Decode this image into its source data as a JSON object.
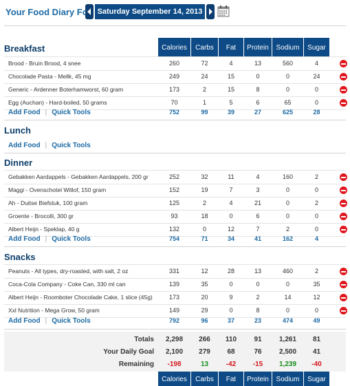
{
  "header": {
    "title": "Your Food Diary For:",
    "date": "Saturday September 14, 2013"
  },
  "columns": [
    "Calories",
    "Carbs",
    "Fat",
    "Protein",
    "Sodium",
    "Sugar"
  ],
  "meals": [
    {
      "name": "Breakfast",
      "entries": [
        {
          "name": "Brood - Bruin Brood, 4 snee",
          "values": [
            "260",
            "72",
            "4",
            "13",
            "560",
            "4"
          ]
        },
        {
          "name": "Chocolade Pasta - Mellk, 45 mg",
          "values": [
            "249",
            "24",
            "15",
            "0",
            "0",
            "24"
          ]
        },
        {
          "name": "Generic - Ardenner Boterhamworst, 60 gram",
          "values": [
            "173",
            "2",
            "15",
            "8",
            "0",
            "0"
          ]
        },
        {
          "name": "Egg (Auchan) - Hard-boiled, 50 grams",
          "values": [
            "70",
            "1",
            "5",
            "6",
            "65",
            "0"
          ]
        }
      ],
      "totals": [
        "752",
        "99",
        "39",
        "27",
        "625",
        "28"
      ]
    },
    {
      "name": "Lunch",
      "entries": [],
      "totals": []
    },
    {
      "name": "Dinner",
      "entries": [
        {
          "name": "Gebakken Aardappels - Gebakken Aardappels, 200 gr",
          "values": [
            "252",
            "32",
            "11",
            "4",
            "160",
            "2"
          ]
        },
        {
          "name": "Maggi - Ovenschotel Witlof, 150 gram",
          "values": [
            "152",
            "19",
            "7",
            "3",
            "0",
            "0"
          ]
        },
        {
          "name": "Ah - Duitse Biefstuk, 100 gram",
          "values": [
            "125",
            "2",
            "4",
            "21",
            "0",
            "2"
          ]
        },
        {
          "name": "Groente - Brocolli, 300 gr",
          "values": [
            "93",
            "18",
            "0",
            "6",
            "0",
            "0"
          ]
        },
        {
          "name": "Albert Heijn - Speklap, 40 g",
          "values": [
            "132",
            "0",
            "12",
            "7",
            "2",
            "0"
          ]
        }
      ],
      "totals": [
        "754",
        "71",
        "34",
        "41",
        "162",
        "4"
      ]
    },
    {
      "name": "Snacks",
      "entries": [
        {
          "name": "Peanuts - All types, dry-roasted, with salt, 2 oz",
          "values": [
            "331",
            "12",
            "28",
            "13",
            "460",
            "2"
          ]
        },
        {
          "name": "Coca-Cola Company - Coke Can, 330 ml can",
          "values": [
            "139",
            "35",
            "0",
            "0",
            "0",
            "35"
          ]
        },
        {
          "name": "Albert Heijn - Roomboter Chocolade Cake, 1 slice (45g)",
          "values": [
            "173",
            "20",
            "9",
            "2",
            "14",
            "12"
          ]
        },
        {
          "name": "Xxl Nutrition - Mega Grow, 50 gram",
          "values": [
            "149",
            "29",
            "0",
            "8",
            "0",
            "0"
          ]
        }
      ],
      "totals": [
        "792",
        "96",
        "37",
        "23",
        "474",
        "49"
      ]
    }
  ],
  "links": {
    "add_food": "Add Food",
    "quick_tools": "Quick Tools",
    "separator": "|"
  },
  "summary": {
    "totals": {
      "label": "Totals",
      "values": [
        "2,298",
        "266",
        "110",
        "91",
        "1,261",
        "81"
      ]
    },
    "goal": {
      "label": "Your Daily Goal",
      "values": [
        "2,100",
        "279",
        "68",
        "76",
        "2,500",
        "41"
      ]
    },
    "remaining": {
      "label": "Remaining",
      "values": [
        "-198",
        "13",
        "-42",
        "-15",
        "1,239",
        "-40"
      ]
    }
  },
  "colors": {
    "header_blue": "#0d4a86",
    "link_blue": "#1d6aa4",
    "positive": "#168c1b",
    "negative": "#d4181e",
    "delete_red": "#e0161d"
  },
  "icons": {
    "prev": "chevron-left-icon",
    "next": "chevron-right-icon",
    "calendar": "calendar-icon",
    "delete": "delete-icon"
  }
}
